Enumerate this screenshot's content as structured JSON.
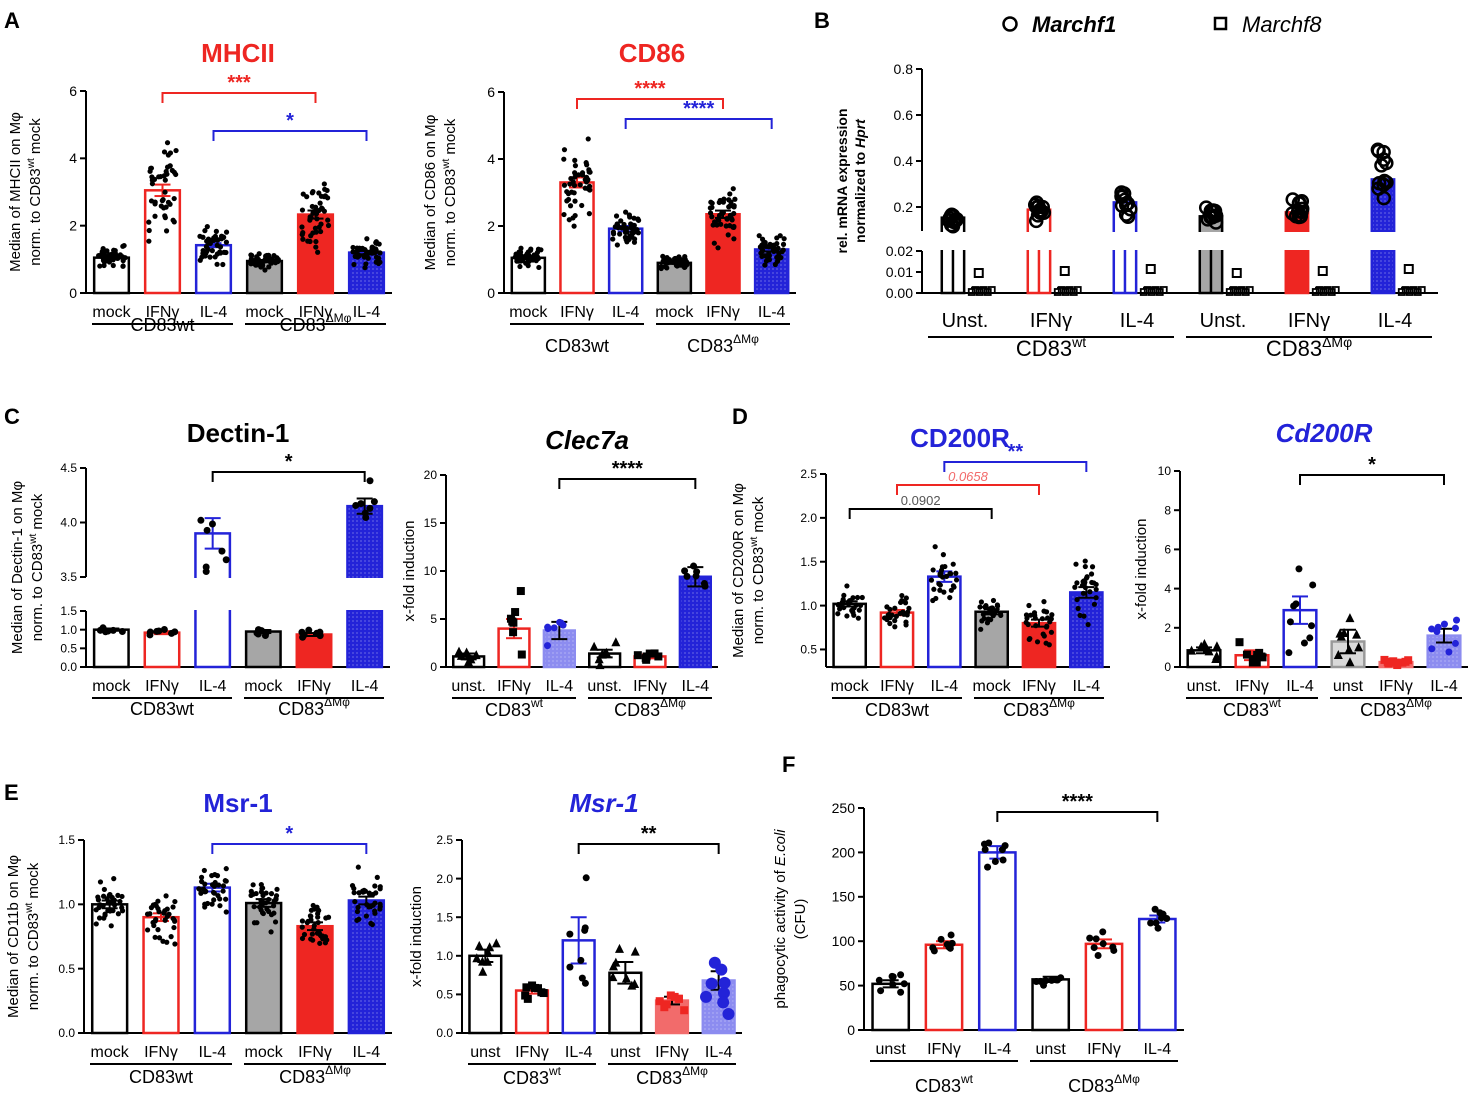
{
  "colors": {
    "red": "#ee2622",
    "blue": "#2323d8",
    "gray": "#a6a6a6",
    "pink": "#f26b6b",
    "lightblue": "#8c8cf0",
    "black": "#000000"
  },
  "text": {
    "legend_f1": "Marchf1",
    "legend_f8": "Marchf8",
    "cd83wt": "CD83wt",
    "cd83": "CD83",
    "sup_wt": "wt",
    "sup_dm": "ΔMφ"
  },
  "chart_data": [
    {
      "id": "A1",
      "panel_letter": "A",
      "type": "bar",
      "title": "MHCII",
      "title_color": "#ee2622",
      "ylabel": [
        "Median of MHCII on Mφ",
        "norm. to CD83",
        "wt",
        " mock"
      ],
      "ylim": [
        0,
        6
      ],
      "yticks": [
        "0",
        "2",
        "4",
        "6"
      ],
      "ytick_values": [
        0,
        2,
        4,
        6
      ],
      "categories": [
        "mock",
        "IFNγ",
        "IL-4",
        "mock",
        "IFNγ",
        "IL-4"
      ],
      "values": [
        1.05,
        3.05,
        1.42,
        0.95,
        2.33,
        1.2
      ],
      "errors": [
        0.04,
        0.17,
        0.06,
        0.03,
        0.12,
        0.05
      ],
      "styles": [
        "w",
        "r",
        "b",
        "g",
        "R",
        "B"
      ],
      "groups": [
        {
          "label": "CD83wt"
        },
        {
          "label": "CD83",
          "sup": "ΔMφ"
        }
      ],
      "sig": [
        {
          "from": 1,
          "to": 4,
          "label": "***",
          "level": 0,
          "color": "red"
        },
        {
          "from": 2,
          "to": 5,
          "label": "*",
          "level": 1,
          "color": "blue"
        }
      ]
    },
    {
      "id": "A2",
      "type": "bar",
      "title": "CD86",
      "title_color": "#ee2622",
      "ylabel": [
        "Median of CD86 on Mφ",
        "norm. to CD83",
        "wt",
        " mock"
      ],
      "ylim": [
        0,
        6
      ],
      "yticks": [
        "0",
        "2",
        "4",
        "6"
      ],
      "ytick_values": [
        0,
        2,
        4,
        6
      ],
      "categories": [
        "mock",
        "IFNγ",
        "IL-4",
        "mock",
        "IFNγ",
        "IL-4"
      ],
      "values": [
        1.05,
        3.3,
        1.92,
        0.9,
        2.35,
        1.3
      ],
      "errors": [
        0.04,
        0.15,
        0.08,
        0.03,
        0.11,
        0.06
      ],
      "styles": [
        "w",
        "r",
        "b",
        "g",
        "R",
        "B"
      ],
      "groups": [
        {
          "label": "CD83wt"
        },
        {
          "label": "CD83",
          "sup": "ΔMφ"
        }
      ],
      "sig": [
        {
          "from": 1,
          "to": 4,
          "label": "****",
          "level": 0,
          "color": "red"
        },
        {
          "from": 2,
          "to": 5,
          "label": "****",
          "level": 1,
          "color": "blue"
        }
      ]
    },
    {
      "id": "B",
      "panel_letter": "B",
      "type": "bar",
      "title": "",
      "ylabel": [
        "rel. mRNA expression",
        "normalized to ",
        "Hprt"
      ],
      "ylim": [
        0,
        0.8
      ],
      "yticks": [
        "0.00",
        "0.01",
        "0.02",
        "0.2",
        "0.4",
        "0.6",
        "0.8"
      ],
      "ytick_values": [
        0,
        0.01,
        0.02,
        0.2,
        0.4,
        0.6,
        0.8
      ],
      "categories": [
        "Unst.",
        "IFNγ",
        "IL-4",
        "Unst.",
        "IFNγ",
        "IL-4"
      ],
      "series": [
        {
          "name": "Marchf1",
          "values": [
            0.12,
            0.18,
            0.22,
            0.13,
            0.16,
            0.32
          ]
        },
        {
          "name": "Marchf8",
          "values": [
            0.002,
            0.003,
            0.002,
            0.002,
            0.002,
            0.003
          ]
        }
      ],
      "styles": [
        "w",
        "r",
        "b",
        "g",
        "R",
        "B"
      ],
      "groups": [
        {
          "label": "CD83",
          "sup": "wt"
        },
        {
          "label": "CD83",
          "sup": "ΔMφ"
        }
      ]
    },
    {
      "id": "C1",
      "panel_letter": "C",
      "type": "bar",
      "title": "Dectin-1",
      "title_color": "#000000",
      "ylabel": [
        "Median of Dectin-1 on Mφ",
        "norm. to CD83",
        "wt",
        " mock"
      ],
      "ylim": [
        0,
        4.5
      ],
      "yticks": [
        "0.0",
        "0.5",
        "1.0",
        "1.5",
        "3.5",
        "4.0",
        "4.5"
      ],
      "ytick_values": [
        0,
        0.5,
        1,
        1.5,
        3.5,
        4,
        4.5
      ],
      "categories": [
        "mock",
        "IFNγ",
        "IL-4",
        "mock",
        "IFNγ",
        "IL-4"
      ],
      "values": [
        1.0,
        0.92,
        3.9,
        0.95,
        0.87,
        4.15
      ],
      "errors": [
        0.03,
        0.04,
        0.14,
        0.04,
        0.04,
        0.07
      ],
      "styles": [
        "w",
        "r",
        "b",
        "g",
        "R",
        "B"
      ],
      "groups": [
        {
          "label": "CD83wt"
        },
        {
          "label": "CD83",
          "sup": "ΔMφ"
        }
      ],
      "sig": [
        {
          "from": 2,
          "to": 5,
          "label": "*",
          "level": 0,
          "color": "black"
        }
      ]
    },
    {
      "id": "C2",
      "type": "bar",
      "title": "Clec7a",
      "title_color": "#000000",
      "ylabel": [
        "x-fold induction"
      ],
      "ylim": [
        0,
        20
      ],
      "yticks": [
        "0",
        "5",
        "10",
        "15",
        "20"
      ],
      "ytick_values": [
        0,
        5,
        10,
        15,
        20
      ],
      "categories": [
        "unst.",
        "IFNγ",
        "IL-4",
        "unst.",
        "IFNγ",
        "IL-4"
      ],
      "values": [
        1.1,
        4.0,
        3.8,
        1.4,
        1.1,
        9.4
      ],
      "errors": [
        0.3,
        1.0,
        0.9,
        0.4,
        0.2,
        1.0
      ],
      "styles": [
        "w",
        "r",
        "l",
        "w",
        "r",
        "B"
      ],
      "groups": [
        {
          "label": "CD83",
          "sup": "wt"
        },
        {
          "label": "CD83",
          "sup": "ΔMφ"
        }
      ],
      "sig": [
        {
          "from": 2,
          "to": 5,
          "label": "****",
          "level": 0,
          "color": "black"
        }
      ]
    },
    {
      "id": "D1",
      "panel_letter": "D",
      "type": "bar",
      "title": "CD200R",
      "title_color": "#2323d8",
      "ylabel": [
        "Median of CD200R on Mφ",
        "norm. to CD83",
        "wt",
        " mock"
      ],
      "ylim": [
        0.3,
        2.5
      ],
      "yticks": [
        "0.5",
        "1.0",
        "1.5",
        "2.0",
        "2.5"
      ],
      "ytick_values": [
        0.5,
        1,
        1.5,
        2,
        2.5
      ],
      "categories": [
        "mock",
        "IFNγ",
        "IL-4",
        "mock",
        "IFNγ",
        "IL-4"
      ],
      "values": [
        1.02,
        0.92,
        1.33,
        0.93,
        0.8,
        1.15
      ],
      "errors": [
        0.03,
        0.03,
        0.06,
        0.03,
        0.04,
        0.06
      ],
      "styles": [
        "w",
        "r",
        "b",
        "g",
        "R",
        "B"
      ],
      "groups": [
        {
          "label": "CD83wt"
        },
        {
          "label": "CD83",
          "sup": "ΔMφ"
        }
      ],
      "sig": [
        {
          "from": 0,
          "to": 3,
          "label": "0.0902",
          "level": 0,
          "color": "black"
        },
        {
          "from": 1,
          "to": 4,
          "label": "0.0658",
          "level": 1,
          "color": "red"
        },
        {
          "from": 2,
          "to": 5,
          "label": "**",
          "level": 2,
          "color": "blue"
        }
      ]
    },
    {
      "id": "D2",
      "type": "bar",
      "title": "Cd200R",
      "title_color": "#2323d8",
      "ylabel": [
        "x-fold induction"
      ],
      "ylim": [
        0,
        10
      ],
      "yticks": [
        "0",
        "2",
        "4",
        "6",
        "8",
        "10"
      ],
      "ytick_values": [
        0,
        2,
        4,
        6,
        8,
        10
      ],
      "categories": [
        "unst.",
        "IFNγ",
        "IL-4",
        "unst",
        "IFNγ",
        "IL-4"
      ],
      "values": [
        0.85,
        0.6,
        2.9,
        1.3,
        0.25,
        1.6
      ],
      "errors": [
        0.15,
        0.25,
        0.7,
        0.6,
        0.05,
        0.35
      ],
      "styles": [
        "w",
        "r",
        "b",
        "G",
        "p",
        "l"
      ],
      "groups": [
        {
          "label": "CD83",
          "sup": "wt"
        },
        {
          "label": "CD83",
          "sup": "ΔMφ"
        }
      ],
      "sig": [
        {
          "from": 2,
          "to": 5,
          "label": "*",
          "level": 0,
          "color": "black"
        }
      ]
    },
    {
      "id": "E1",
      "panel_letter": "E",
      "type": "bar",
      "title": "Msr-1",
      "title_color": "#2323d8",
      "ylabel": [
        "Median of CD11b on Mφ",
        "norm. to CD83",
        "wt",
        " mock"
      ],
      "ylim": [
        0,
        1.5
      ],
      "yticks": [
        "0.0",
        "0.5",
        "1.0",
        "1.5"
      ],
      "ytick_values": [
        0,
        0.5,
        1,
        1.5
      ],
      "categories": [
        "mock",
        "IFNγ",
        "IL-4",
        "mock",
        "IFNγ",
        "IL-4"
      ],
      "values": [
        1.0,
        0.9,
        1.13,
        1.01,
        0.83,
        1.03
      ],
      "errors": [
        0.03,
        0.03,
        0.03,
        0.03,
        0.03,
        0.03
      ],
      "styles": [
        "w",
        "r",
        "b",
        "g",
        "R",
        "B"
      ],
      "groups": [
        {
          "label": "CD83wt"
        },
        {
          "label": "CD83",
          "sup": "ΔMφ"
        }
      ],
      "sig": [
        {
          "from": 2,
          "to": 5,
          "label": "*",
          "level": 0,
          "color": "blue"
        }
      ]
    },
    {
      "id": "E2",
      "type": "bar",
      "title": "Msr-1",
      "title_color": "#2323d8",
      "ylabel": [
        "x-fold induction"
      ],
      "ylim": [
        0,
        2.5
      ],
      "yticks": [
        "0.0",
        "0.5",
        "1.0",
        "1.5",
        "2.0",
        "2.5"
      ],
      "ytick_values": [
        0,
        0.5,
        1,
        1.5,
        2,
        2.5
      ],
      "categories": [
        "unst",
        "IFNγ",
        "IL-4",
        "unst",
        "IFNγ",
        "IL-4"
      ],
      "values": [
        1.0,
        0.55,
        1.2,
        0.78,
        0.42,
        0.68
      ],
      "errors": [
        0.08,
        0.04,
        0.3,
        0.14,
        0.05,
        0.12
      ],
      "styles": [
        "w",
        "r",
        "b",
        "w",
        "p",
        "l"
      ],
      "groups": [
        {
          "label": "CD83",
          "sup": "wt"
        },
        {
          "label": "CD83",
          "sup": "ΔMφ"
        }
      ],
      "sig": [
        {
          "from": 2,
          "to": 5,
          "label": "**",
          "level": 0,
          "color": "black"
        }
      ]
    },
    {
      "id": "F",
      "panel_letter": "F",
      "type": "bar",
      "title": "",
      "ylabel": [
        "phagocytic activity of ",
        "E.coli",
        "(CFU)"
      ],
      "ylim": [
        0,
        250
      ],
      "yticks": [
        "0",
        "50",
        "100",
        "150",
        "200",
        "250"
      ],
      "ytick_values": [
        0,
        50,
        100,
        150,
        200,
        250
      ],
      "categories": [
        "unst",
        "IFNγ",
        "IL-4",
        "unst",
        "IFNγ",
        "IL-4"
      ],
      "values": [
        52,
        96,
        200,
        57,
        97,
        125
      ],
      "errors": [
        4,
        4,
        7,
        3,
        5,
        4
      ],
      "styles": [
        "w",
        "r",
        "b",
        "w",
        "r",
        "b"
      ],
      "groups": [
        {
          "label": "CD83",
          "sup": "wt"
        },
        {
          "label": "CD83",
          "sup": "ΔMφ"
        }
      ],
      "sig": [
        {
          "from": 2,
          "to": 5,
          "label": "****",
          "level": 0,
          "color": "black"
        }
      ]
    }
  ]
}
